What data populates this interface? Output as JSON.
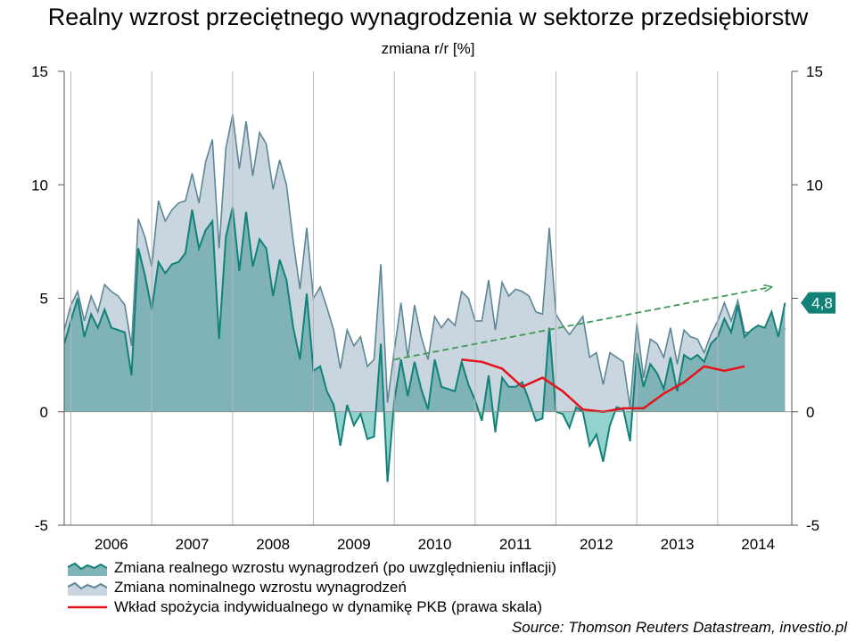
{
  "title": "Realny wzrost przeciętnego wynagrodzenia w sektorze przedsiębiorstw",
  "subtitle": "zmiana r/r [%]",
  "source": "Source: Thomson Reuters Datastream, investio.pl",
  "colors": {
    "real_fill": "#7fb3b7",
    "real_line": "#128278",
    "real_neg_fill": "#93d2cd",
    "nominal_fill": "#c9d5df",
    "nominal_line": "#5c8796",
    "consumption_line": "#e5141b",
    "trend_line": "#3e9a55",
    "badge": "#128278"
  },
  "legend": [
    {
      "label": "Zmiana realnego wzrostu wynagrodzeń (po uwzględnieniu inflacji)",
      "key": "real"
    },
    {
      "label": "Zmiana nominalnego wzrostu wynagrodzeń",
      "key": "nominal"
    },
    {
      "label": "Wkład spożycia indywidualnego w dynamikę PKB (prawa skala)",
      "key": "consumption"
    }
  ],
  "chart_data": {
    "type": "area",
    "title": "Realny wzrost przeciętnego wynagrodzenia w sektorze przedsiębiorstw",
    "subtitle": "zmiana r/r [%]",
    "ylim": [
      -5,
      15
    ],
    "y_ticks": [
      -5,
      0,
      5,
      10,
      15
    ],
    "y_tick_labels": [
      "-5",
      "0",
      "5",
      "10",
      "15"
    ],
    "x_labels": [
      "2006",
      "2007",
      "2008",
      "2009",
      "2010",
      "2011",
      "2012",
      "2013",
      "2014"
    ],
    "x_range": [
      2005.917,
      2014.917
    ],
    "end_label": "4,8",
    "series": [
      {
        "name": "Zmiana realnego wzrostu wynagrodzeń (po uwzględnieniu inflacji)",
        "key": "real",
        "start": "2005-12",
        "frequency": "monthly",
        "values": [
          3.0,
          4.0,
          5.0,
          3.3,
          4.3,
          3.7,
          4.5,
          3.7,
          3.6,
          3.5,
          1.6,
          7.2,
          6.0,
          4.5,
          6.6,
          6.1,
          6.5,
          6.6,
          7.0,
          8.9,
          7.2,
          8.0,
          8.4,
          3.2,
          7.7,
          9.0,
          6.2,
          8.8,
          6.4,
          7.6,
          7.2,
          5.1,
          6.7,
          5.8,
          3.7,
          2.3,
          5.2,
          1.8,
          2.0,
          0.9,
          0.3,
          -1.5,
          0.3,
          -0.6,
          -0.1,
          -1.2,
          -1.1,
          3.0,
          -3.1,
          0.5,
          2.3,
          0.7,
          2.2,
          1.0,
          0.1,
          2.3,
          1.1,
          1.0,
          0.9,
          2.2,
          1.2,
          0.5,
          -0.4,
          1.6,
          -0.9,
          1.5,
          1.1,
          1.1,
          1.3,
          0.5,
          -0.4,
          -0.3,
          3.7,
          0.0,
          -0.1,
          -0.7,
          0.2,
          0.0,
          -1.5,
          -1.0,
          -2.2,
          -0.6,
          0.2,
          0.1,
          -1.3,
          2.6,
          1.1,
          2.1,
          1.7,
          1.0,
          2.4,
          0.9,
          2.5,
          2.3,
          2.5,
          2.2,
          3.0,
          3.3,
          4.1,
          3.5,
          4.7,
          3.3,
          3.6,
          3.8,
          3.7,
          4.4,
          3.3,
          4.8
        ]
      },
      {
        "name": "Zmiana nominalnego wzrostu wynagrodzeń",
        "key": "nominal",
        "start": "2005-12",
        "frequency": "monthly",
        "values": [
          3.6,
          4.7,
          5.3,
          4.0,
          5.1,
          4.4,
          5.6,
          5.3,
          5.1,
          4.7,
          2.9,
          8.5,
          7.7,
          6.4,
          9.3,
          8.4,
          8.9,
          9.2,
          9.3,
          10.5,
          9.2,
          11.0,
          12.0,
          7.2,
          11.6,
          13.1,
          10.7,
          12.8,
          10.4,
          12.3,
          11.8,
          9.8,
          11.1,
          10.0,
          7.5,
          5.4,
          8.1,
          5.0,
          5.5,
          4.6,
          3.6,
          1.9,
          3.6,
          2.9,
          3.3,
          2.0,
          2.3,
          6.5,
          0.4,
          2.7,
          4.8,
          2.4,
          4.7,
          3.3,
          2.3,
          4.2,
          3.7,
          4.1,
          3.8,
          5.3,
          5.0,
          4.0,
          4.0,
          5.8,
          3.6,
          5.7,
          5.1,
          5.4,
          5.3,
          5.1,
          4.4,
          4.3,
          8.1,
          4.3,
          3.8,
          3.4,
          3.8,
          4.2,
          2.4,
          2.6,
          1.2,
          2.6,
          2.4,
          2.2,
          0.2,
          3.9,
          1.5,
          3.2,
          3.0,
          2.4,
          3.7,
          2.1,
          3.6,
          3.3,
          3.2,
          2.6,
          3.4,
          4.0,
          4.8,
          4.0,
          4.9,
          3.5,
          3.5,
          3.6,
          3.5,
          3.8,
          2.8,
          3.7
        ]
      },
      {
        "name": "Wkład spożycia indywidualnego w dynamikę PKB (prawa skala)",
        "key": "consumption",
        "axis": "right",
        "x": [
          "2010-11",
          "2011-02",
          "2011-05",
          "2011-08",
          "2011-11",
          "2012-02",
          "2012-05",
          "2012-08",
          "2012-11",
          "2013-02",
          "2013-05",
          "2013-08",
          "2013-11",
          "2014-02",
          "2014-05",
          "2014-08"
        ],
        "values": [
          2.3,
          2.2,
          1.9,
          1.1,
          1.5,
          0.9,
          0.1,
          0.0,
          0.15,
          0.15,
          0.8,
          1.3,
          2.0,
          1.8,
          2.0,
          null
        ]
      },
      {
        "key": "trend",
        "style": "dashed-arrow",
        "x": [
          "2010-01",
          "2014-09"
        ],
        "values": [
          2.3,
          5.5
        ]
      }
    ]
  }
}
